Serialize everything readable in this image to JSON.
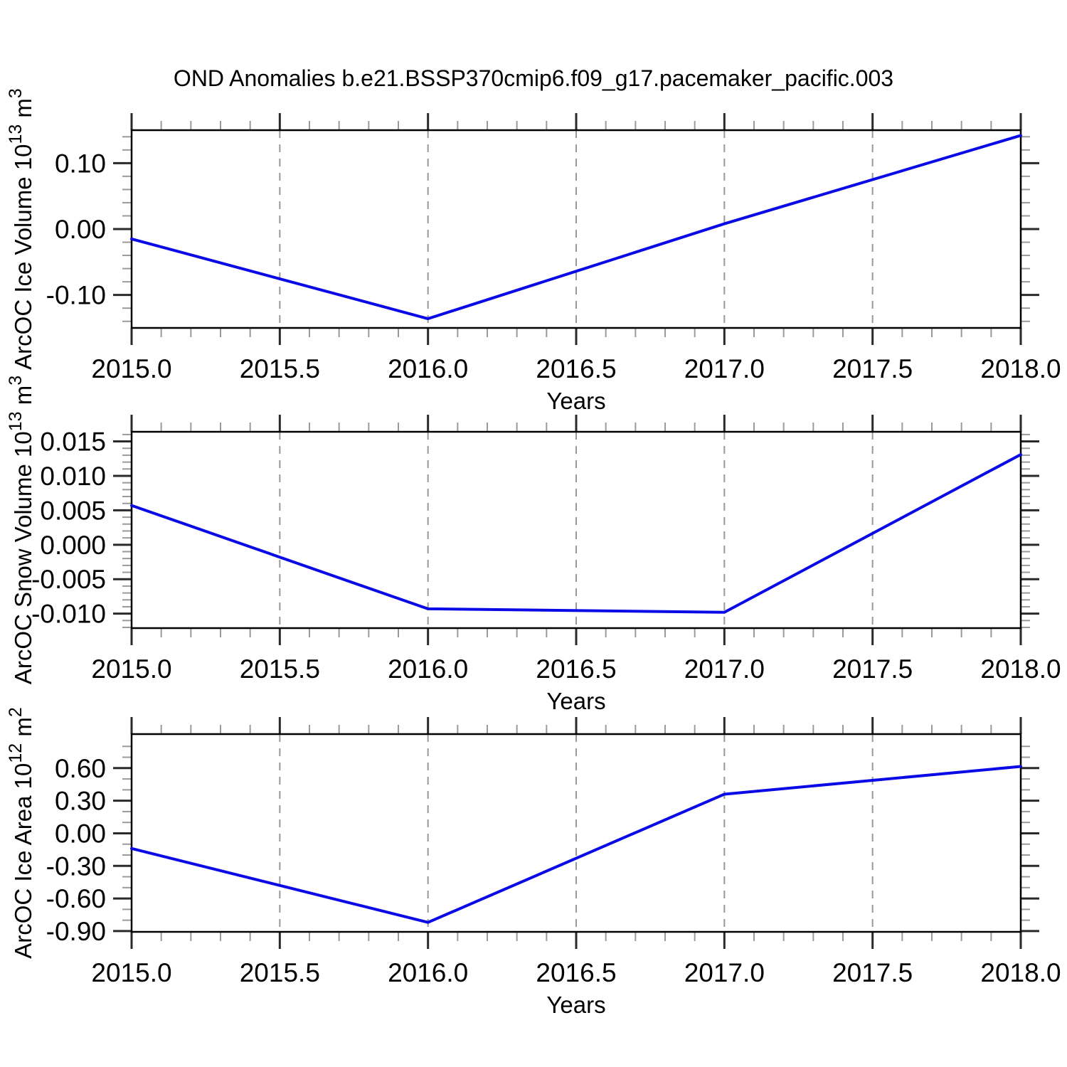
{
  "page": {
    "title": "OND Anomalies b.e21.BSSP370cmip6.f09_g17.pacemaker_pacific.003"
  },
  "style": {
    "line_color": "#0a0ae6",
    "frame_color": "#000000",
    "major_tick_color": "#2a2a2a",
    "minor_tick_color": "#9a9a9a",
    "grid_color": "#989898",
    "text_color": "#000000"
  },
  "x_axis": {
    "label": "Years",
    "xlim": [
      2015.0,
      2018.0
    ],
    "major_ticks": [
      {
        "v": 2015.0,
        "label": "2015.0"
      },
      {
        "v": 2015.5,
        "label": "2015.5"
      },
      {
        "v": 2016.0,
        "label": "2016.0"
      },
      {
        "v": 2016.5,
        "label": "2016.5"
      },
      {
        "v": 2017.0,
        "label": "2017.0"
      },
      {
        "v": 2017.5,
        "label": "2017.5"
      },
      {
        "v": 2018.0,
        "label": "2018.0"
      }
    ],
    "minor_step": 0.1,
    "gridlines": [
      2015.5,
      2016.0,
      2016.5,
      2017.0,
      2017.5
    ],
    "grid_on": true
  },
  "chart_data": [
    {
      "type": "line",
      "name": "arcoc-ice-volume",
      "ylabel": "ArcOC Ice Volume 10^13 m^3",
      "ylabel_segments": [
        {
          "text": "ArcOC Ice Volume 10",
          "sup": false
        },
        {
          "text": "13",
          "sup": true
        },
        {
          "text": " m",
          "sup": false
        },
        {
          "text": "3",
          "sup": true
        }
      ],
      "xlabel": "Years",
      "x": [
        2015.0,
        2016.0,
        2017.0,
        2018.0
      ],
      "y": [
        -0.015,
        -0.136,
        0.008,
        0.142
      ],
      "ylim": [
        -0.15,
        0.15
      ],
      "yticks": [
        {
          "v": 0.1,
          "label": "0.10"
        },
        {
          "v": 0.0,
          "label": "0.00"
        },
        {
          "v": -0.1,
          "label": "-0.10"
        }
      ],
      "y_major_step": 0.1,
      "y_minor_step": 0.02,
      "legend": "none"
    },
    {
      "type": "line",
      "name": "arcoc-snow-volume",
      "ylabel": "ArcOC Snow Volume 10^13 m^3",
      "ylabel_segments": [
        {
          "text": "ArcOC Snow Volume 10",
          "sup": false
        },
        {
          "text": "13",
          "sup": true
        },
        {
          "text": " m",
          "sup": false
        },
        {
          "text": "3",
          "sup": true
        }
      ],
      "xlabel": "Years",
      "x": [
        2015.0,
        2016.0,
        2017.0,
        2018.0
      ],
      "y": [
        0.0057,
        -0.0093,
        -0.0098,
        0.0131
      ],
      "ylim": [
        -0.0121,
        0.0164
      ],
      "yticks": [
        {
          "v": 0.015,
          "label": "0.015"
        },
        {
          "v": 0.01,
          "label": "0.010"
        },
        {
          "v": 0.005,
          "label": "0.005"
        },
        {
          "v": 0.0,
          "label": "0.000"
        },
        {
          "v": -0.005,
          "label": "-0.005"
        },
        {
          "v": -0.01,
          "label": "-0.010"
        }
      ],
      "y_major_step": 0.005,
      "y_minor_step": 0.001,
      "legend": "none"
    },
    {
      "type": "line",
      "name": "arcoc-ice-area",
      "ylabel": "ArcOC Ice Area 10^12 m^2",
      "ylabel_segments": [
        {
          "text": "ArcOC Ice Area 10",
          "sup": false
        },
        {
          "text": "12",
          "sup": true
        },
        {
          "text": " m",
          "sup": false
        },
        {
          "text": "2",
          "sup": true
        }
      ],
      "xlabel": "Years",
      "x": [
        2015.0,
        2016.0,
        2017.0,
        2018.0
      ],
      "y": [
        -0.14,
        -0.82,
        0.36,
        0.615
      ],
      "ylim": [
        -0.907,
        0.913
      ],
      "yticks": [
        {
          "v": 0.6,
          "label": "0.60"
        },
        {
          "v": 0.3,
          "label": "0.30"
        },
        {
          "v": 0.0,
          "label": "0.00"
        },
        {
          "v": -0.3,
          "label": "-0.30"
        },
        {
          "v": -0.6,
          "label": "-0.60"
        },
        {
          "v": -0.9,
          "label": "-0.90"
        }
      ],
      "y_major_step": 0.3,
      "y_minor_step": 0.1,
      "legend": "none"
    }
  ]
}
